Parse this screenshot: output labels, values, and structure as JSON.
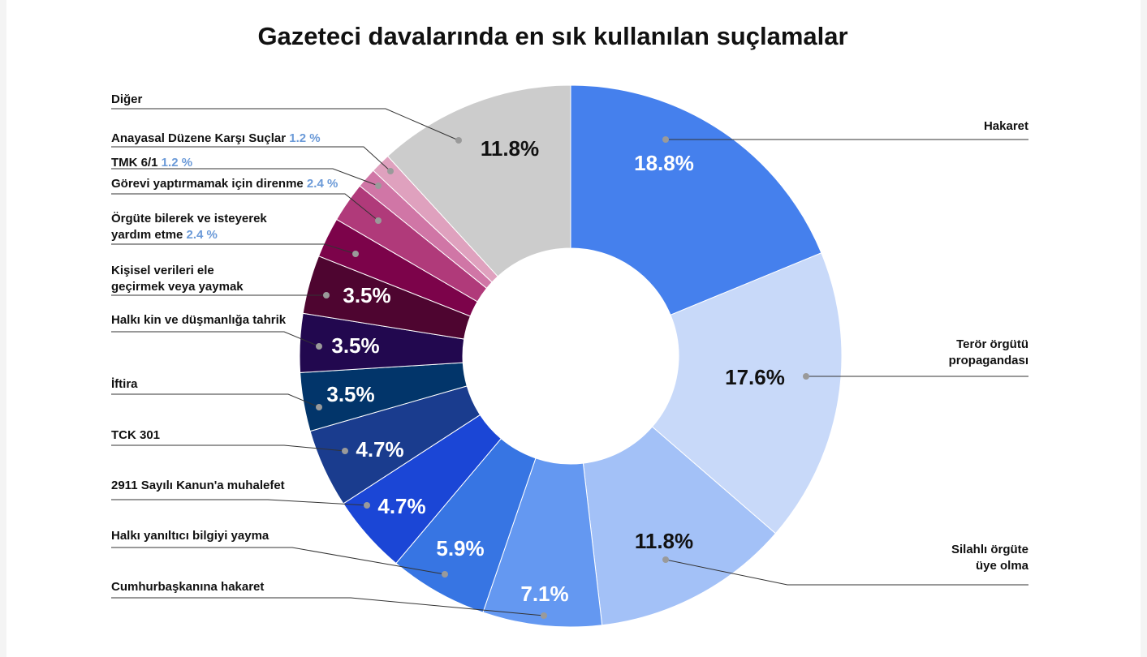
{
  "chart_data": {
    "type": "pie",
    "title": "Gazeteci davalarında en sık kullanılan suçlamalar",
    "slices": [
      {
        "label": "Hakaret",
        "value": 18.8,
        "display": "18.8%",
        "color": "#4580ed",
        "text_color": "#ffffff"
      },
      {
        "label_lines": [
          "Terör örgütü",
          "propagandası"
        ],
        "value": 17.6,
        "display": "17.6%",
        "color": "#c8d9f9",
        "text_color": "#111111"
      },
      {
        "label_lines": [
          "Silahlı örgüte",
          "üye olma"
        ],
        "value": 11.8,
        "display": "11.8%",
        "color": "#a3c1f7",
        "text_color": "#111111"
      },
      {
        "label": "Cumhurbaşkanına hakaret",
        "value": 7.1,
        "display": "7.1%",
        "color": "#6498f1",
        "text_color": "#ffffff"
      },
      {
        "label": "Halkı yanıltıcı bilgiyi yayma",
        "value": 5.9,
        "display": "5.9%",
        "color": "#3775e3",
        "text_color": "#ffffff"
      },
      {
        "label": "2911 Sayılı Kanun'a muhalefet",
        "value": 4.7,
        "display": "4.7%",
        "color": "#1b46d6",
        "text_color": "#ffffff"
      },
      {
        "label": "TCK 301",
        "value": 4.7,
        "display": "4.7%",
        "color": "#1a3c8e",
        "text_color": "#ffffff"
      },
      {
        "label": "İftira",
        "value": 3.5,
        "display": "3.5%",
        "color": "#02356a",
        "text_color": "#ffffff"
      },
      {
        "label": "Halkı kin ve düşmanlığa tahrik",
        "value": 3.5,
        "display": "3.5%",
        "color": "#22084f",
        "text_color": "#ffffff"
      },
      {
        "label_lines": [
          "Kişisel verileri ele",
          "geçirmek veya yaymak"
        ],
        "value": 3.5,
        "display": "3.5%",
        "color": "#4e0530",
        "text_color": "#ffffff"
      },
      {
        "label_lines": [
          "Örgüte bilerek ve isteyerek",
          "yardım etme"
        ],
        "value": 2.4,
        "display": "2.4 %",
        "color": "#7c034a",
        "text_color": "#ffffff"
      },
      {
        "label": "Görevi yaptırmamak için direnme",
        "value": 2.4,
        "display": "2.4 %",
        "color": "#b03a7a",
        "text_color": "#ffffff"
      },
      {
        "label": "TMK 6/1",
        "value": 1.2,
        "display": "1.2 %",
        "color": "#d076a6",
        "text_color": "#ffffff"
      },
      {
        "label": "Anayasal Düzene Karşı Suçlar",
        "value": 1.2,
        "display": "1.2 %",
        "color": "#dfa1be",
        "text_color": "#ffffff"
      },
      {
        "label": "Diğer",
        "value": 11.8,
        "display": "11.8%",
        "color": "#cccccc",
        "text_color": "#111111"
      }
    ]
  }
}
